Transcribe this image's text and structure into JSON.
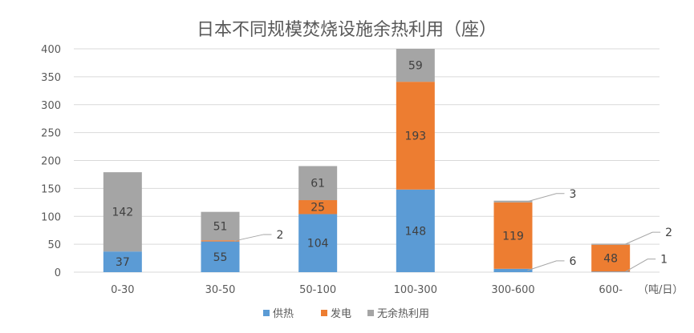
{
  "chart_data": {
    "type": "bar",
    "stacked": true,
    "title": "日本不同规模焚烧设施余热利用（座）",
    "x_unit": "（吨/日）",
    "categories": [
      "0-30",
      "30-50",
      "50-100",
      "100-300",
      "300-600",
      "600-"
    ],
    "series": [
      {
        "name": "供热",
        "color": "#5B9BD5",
        "values": [
          37,
          55,
          104,
          148,
          6,
          1
        ]
      },
      {
        "name": "发电",
        "color": "#ED7D31",
        "values": [
          0,
          2,
          25,
          193,
          119,
          48
        ]
      },
      {
        "name": "无余热利用",
        "color": "#A5A5A5",
        "values": [
          142,
          51,
          61,
          59,
          3,
          2
        ]
      }
    ],
    "ylim": [
      0,
      400
    ],
    "yticks": [
      0,
      50,
      100,
      150,
      200,
      250,
      300,
      350,
      400
    ],
    "grid": true,
    "legend": "bottom",
    "inner_labels": [
      {
        "cat": 0,
        "series": 0,
        "text": "37"
      },
      {
        "cat": 0,
        "series": 2,
        "text": "142"
      },
      {
        "cat": 1,
        "series": 0,
        "text": "55"
      },
      {
        "cat": 1,
        "series": 2,
        "text": "51"
      },
      {
        "cat": 2,
        "series": 0,
        "text": "104"
      },
      {
        "cat": 2,
        "series": 1,
        "text": "25"
      },
      {
        "cat": 2,
        "series": 2,
        "text": "61"
      },
      {
        "cat": 3,
        "series": 0,
        "text": "148"
      },
      {
        "cat": 3,
        "series": 1,
        "text": "193"
      },
      {
        "cat": 3,
        "series": 2,
        "text": "59"
      },
      {
        "cat": 4,
        "series": 1,
        "text": "119"
      },
      {
        "cat": 5,
        "series": 1,
        "text": "48"
      }
    ],
    "callouts": [
      {
        "cat": 1,
        "series": 1,
        "text": "2"
      },
      {
        "cat": 4,
        "series": 2,
        "text": "3"
      },
      {
        "cat": 4,
        "series": 0,
        "text": "6"
      },
      {
        "cat": 5,
        "series": 2,
        "text": "2"
      },
      {
        "cat": 5,
        "series": 0,
        "text": "1"
      }
    ]
  }
}
